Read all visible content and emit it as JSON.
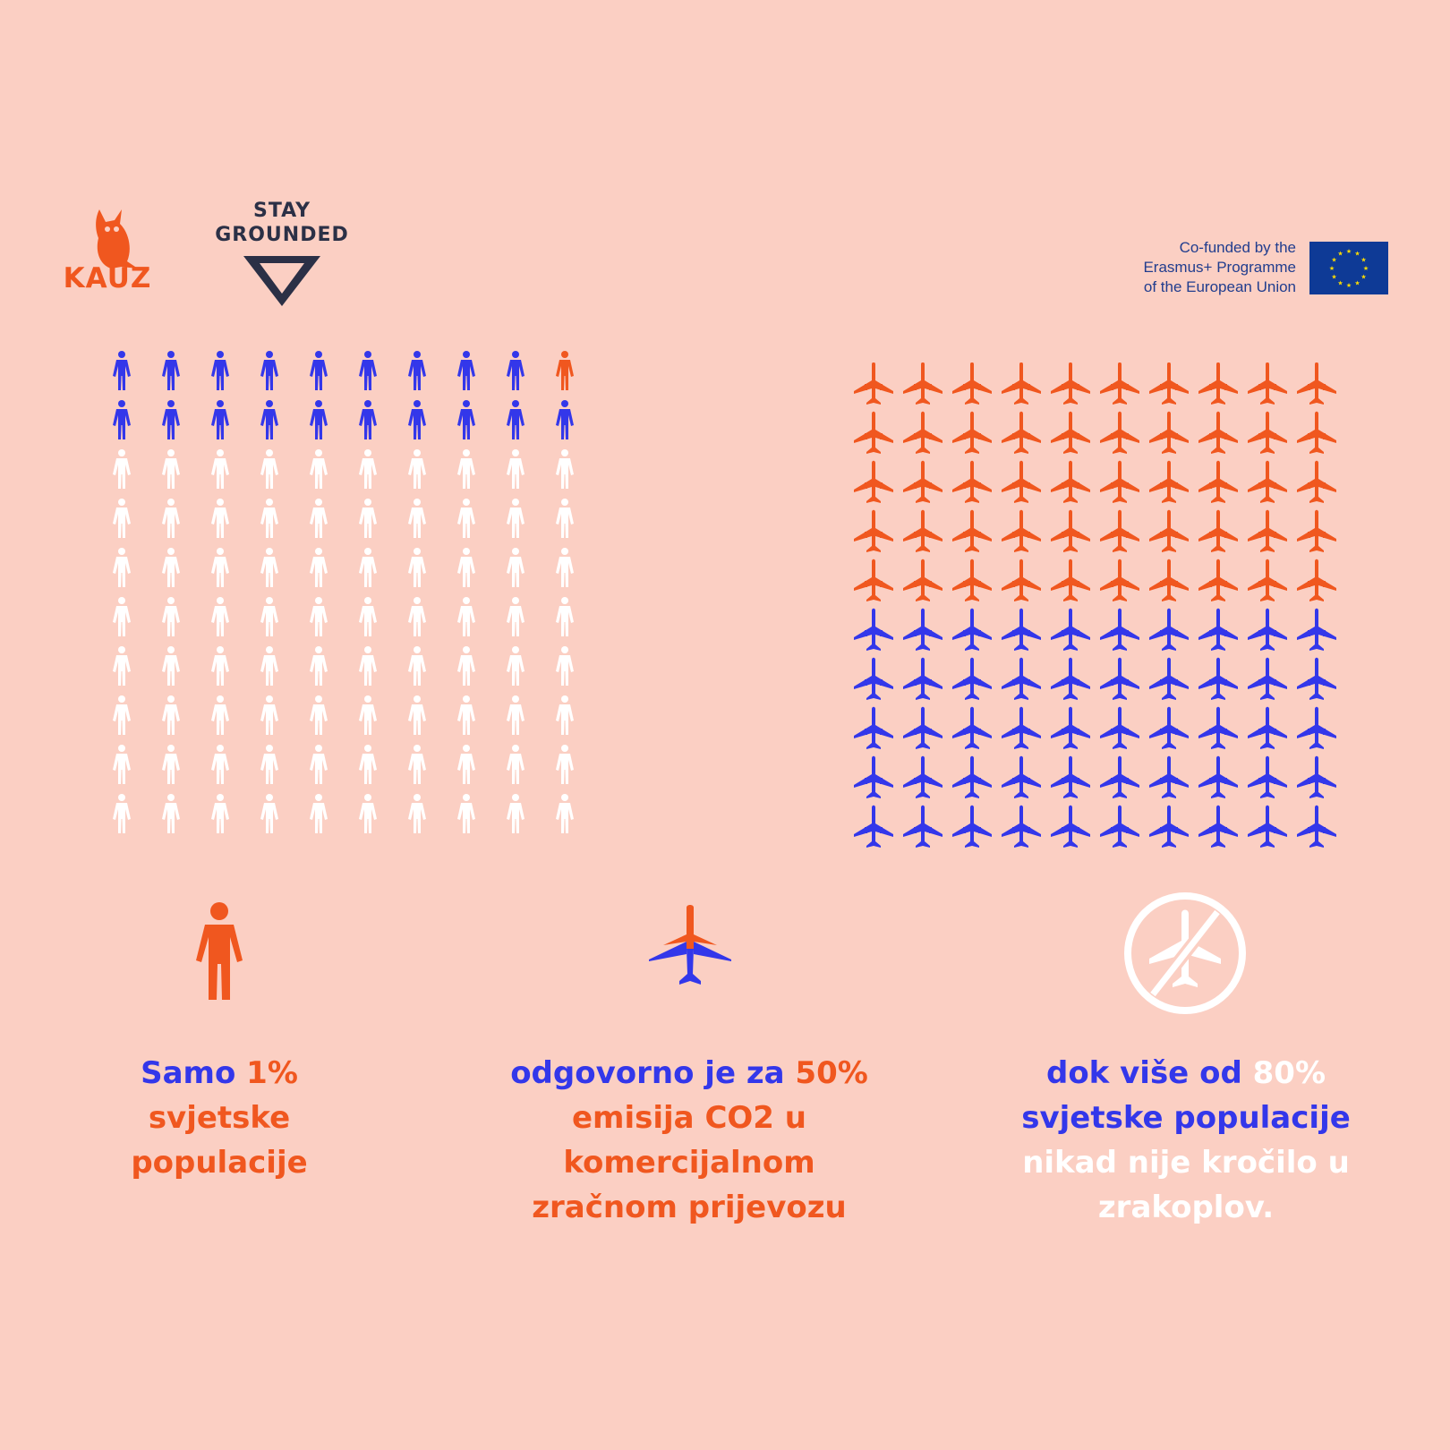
{
  "logos": {
    "kauz": "KAUZ",
    "stay_grounded_line1": "STAY",
    "stay_grounded_line2": "GROUNDED",
    "eu_line1": "Co-funded by the",
    "eu_line2": "Erasmus+ Programme",
    "eu_line3": "of the European Union"
  },
  "colors": {
    "background": "#FBCFC3",
    "blue": "#3337EA",
    "orange": "#F0571F",
    "white": "#FFFFFF"
  },
  "people_grid": {
    "rows": 10,
    "cols": 10,
    "orange_count": 1,
    "blue_count": 19,
    "white_count": 80
  },
  "plane_grid": {
    "rows": 10,
    "cols": 10,
    "orange_count": 50,
    "blue_count": 50
  },
  "stats": {
    "stat1": {
      "a": "Samo ",
      "b": "1%",
      "c": "svjetske",
      "d": "populacije"
    },
    "stat2": {
      "a": "odgovorno je za ",
      "b": "50%",
      "c": "emisija CO2 u",
      "d": "komercijalnom",
      "e": "zračnom prijevozu"
    },
    "stat3": {
      "a": "dok više od ",
      "b": "80%",
      "c": "svjetske populacije",
      "d": "nikad nije kročilo u",
      "e": "zrakoplov."
    }
  }
}
